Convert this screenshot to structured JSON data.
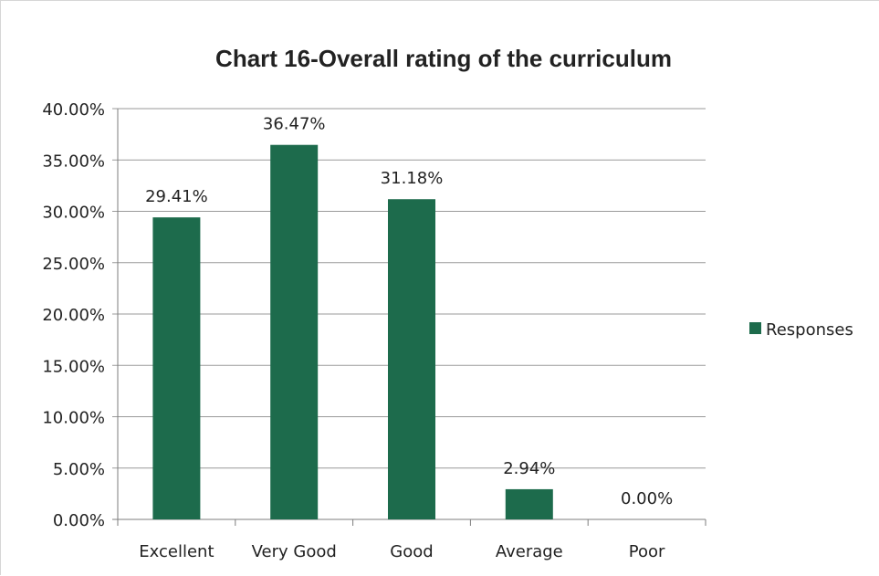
{
  "chart_data": {
    "type": "bar",
    "title": "Chart 16-Overall rating of the curriculum",
    "categories": [
      "Excellent",
      "Very Good",
      "Good",
      "Average",
      "Poor"
    ],
    "series": [
      {
        "name": "Responses",
        "color": "#1d6b4c",
        "values": [
          29.41,
          36.47,
          31.18,
          2.94,
          0.0
        ],
        "labels": [
          "29.41%",
          "36.47%",
          "31.18%",
          "2.94%",
          "0.00%"
        ]
      }
    ],
    "ylim": [
      0,
      40
    ],
    "yticks": [
      "0.00%",
      "5.00%",
      "10.00%",
      "15.00%",
      "20.00%",
      "25.00%",
      "30.00%",
      "35.00%",
      "40.00%"
    ],
    "grid": true,
    "legend_position": "right"
  }
}
